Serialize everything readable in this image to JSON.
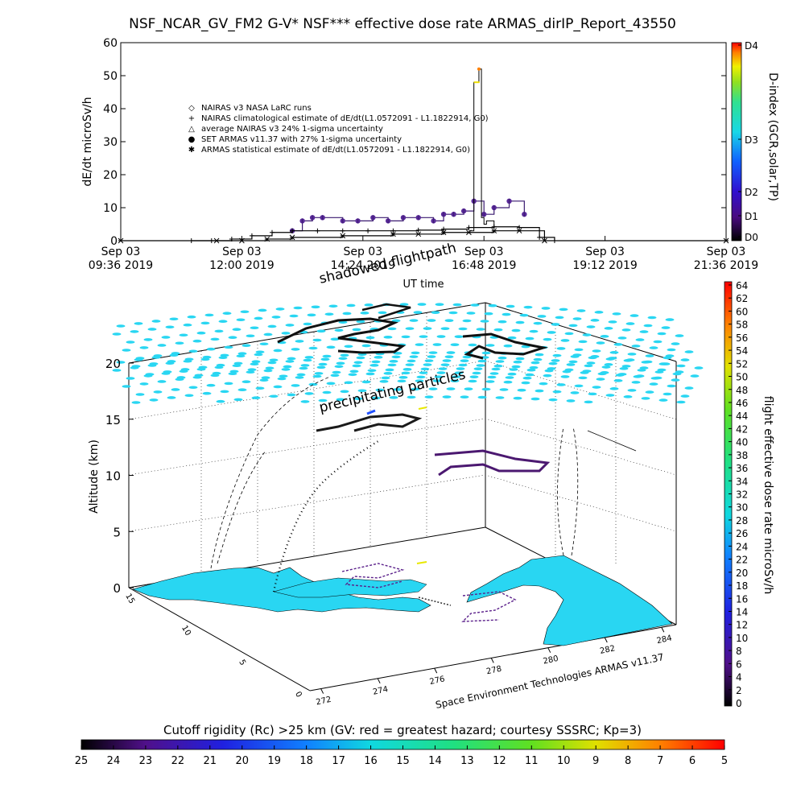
{
  "title": "NSF_NCAR_GV_FM2 G-V* NSF*** effective dose rate ARMAS_dirIP_Report_43550",
  "chart_data": [
    {
      "type": "line",
      "ylabel": "dE/dt microSv/h",
      "xlabel": "UT time",
      "ylim": [
        0,
        60
      ],
      "y_ticks": [
        "0",
        "10",
        "20",
        "30",
        "40",
        "50",
        "60"
      ],
      "x_ticks": [
        {
          "top": "Sep 03",
          "bottom": "09:36 2019"
        },
        {
          "top": "Sep 03",
          "bottom": "12:00 2019"
        },
        {
          "top": "Sep 03",
          "bottom": "14:24 2019"
        },
        {
          "top": "Sep 03",
          "bottom": "16:48 2019"
        },
        {
          "top": "Sep 03",
          "bottom": "19:12 2019"
        },
        {
          "top": "Sep 03",
          "bottom": "21:36 2019"
        }
      ],
      "legend": [
        {
          "symbol": "◇",
          "label": "NAIRAS v3 NASA LaRC runs"
        },
        {
          "symbol": "+",
          "label": "NAIRAS climatological estimate of dE/dt(L1.0572091 - L1.1822914, G0)"
        },
        {
          "symbol": "△",
          "label": "average NAIRAS v3 24% 1-sigma uncertainty"
        },
        {
          "symbol": "●",
          "label": "SET ARMAS v11.37 with 27% 1-sigma uncertainty"
        },
        {
          "symbol": "✱",
          "label": "ARMAS statistical estimate of dE/dt(L1.0572091 - L1.1822914, G0)"
        }
      ],
      "series": [
        {
          "name": "SET ARMAS v11.37 with 27% 1-sigma uncertainty",
          "x_hours": [
            13.0,
            13.2,
            13.4,
            13.6,
            14.0,
            14.3,
            14.6,
            14.9,
            15.2,
            15.5,
            15.8,
            16.0,
            16.2,
            16.4,
            16.6,
            16.8,
            17.0,
            17.3,
            17.6
          ],
          "values": [
            3,
            6,
            7,
            7,
            6,
            6,
            7,
            6,
            7,
            7,
            6,
            8,
            8,
            9,
            12,
            8,
            10,
            12,
            8
          ]
        },
        {
          "name": "NAIRAS climatological estimate of dE/dt(L1.0572091 - L1.1822914, G0)",
          "x_hours": [
            11.0,
            11.4,
            11.8,
            12.2,
            12.6,
            13.0,
            13.5,
            14.0,
            14.5,
            15.0,
            15.5,
            16.0,
            16.5,
            17.0,
            17.5,
            17.9,
            18.2
          ],
          "values": [
            0,
            0,
            0.5,
            1.5,
            2.5,
            3,
            3,
            3,
            3,
            3,
            3.2,
            3.5,
            4,
            4.2,
            4,
            1,
            0
          ]
        },
        {
          "name": "ARMAS statistical estimate of dE/dt(L1.0572091 - L1.1822914, G0)",
          "x_hours": [
            9.6,
            11.5,
            12.0,
            12.5,
            13.0,
            14.0,
            15.0,
            15.5,
            16.0,
            16.5,
            17.0,
            17.5,
            18.0,
            21.6
          ],
          "values": [
            0,
            0,
            0,
            0.5,
            1,
            1.5,
            2,
            2,
            2.5,
            2.5,
            3,
            3,
            0,
            0
          ]
        },
        {
          "name": "spike",
          "x_hours": [
            16.5,
            16.6,
            16.65,
            16.7,
            16.75,
            16.8,
            16.85,
            17.0
          ],
          "values": [
            3,
            48,
            48,
            52,
            7,
            5,
            6,
            4
          ]
        }
      ]
    },
    {
      "type": "scatter",
      "zlabel": "Altitude (km)",
      "z_ticks": [
        "0",
        "5",
        "10",
        "15",
        "20"
      ],
      "x_ticks": [
        "272",
        "274",
        "276",
        "278",
        "280",
        "282",
        "284"
      ],
      "y_ticks": [
        "0",
        "5",
        "10",
        "15"
      ],
      "annotations": [
        "shadowed flightpath",
        "precipitating particles",
        "Space Environment Technologies ARMAS v11.37"
      ],
      "map_color": "#29d6f2"
    }
  ],
  "dindex_colorbar": {
    "label": "D-index (GCR,solar,TP)",
    "ticks": [
      "D0",
      "D1",
      "D2",
      "D3",
      "D4"
    ]
  },
  "dose_colorbar": {
    "label": "flight effective dose rate microSv/h",
    "ticks": [
      "0",
      "2",
      "4",
      "6",
      "8",
      "10",
      "12",
      "14",
      "16",
      "18",
      "20",
      "22",
      "24",
      "26",
      "28",
      "30",
      "32",
      "34",
      "36",
      "38",
      "40",
      "42",
      "44",
      "46",
      "48",
      "50",
      "52",
      "54",
      "56",
      "58",
      "60",
      "62",
      "64"
    ]
  },
  "rigidity_colorbar": {
    "title": "Cutoff rigidity (Rc) >25 km (GV: red = greatest hazard; courtesy SSSRC; Kp=3)",
    "ticks": [
      "25",
      "24",
      "23",
      "22",
      "21",
      "20",
      "19",
      "18",
      "17",
      "16",
      "15",
      "14",
      "13",
      "12",
      "11",
      "10",
      "9",
      "8",
      "7",
      "6",
      "5"
    ]
  }
}
